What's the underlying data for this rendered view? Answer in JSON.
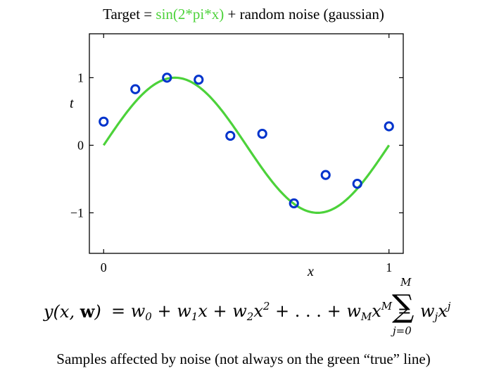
{
  "title": {
    "prefix": "Target = ",
    "highlight": "sin(2*pi*x)",
    "suffix": " + random noise (gaussian)"
  },
  "colors": {
    "curve": "#4cd23a",
    "points": "#0033cc",
    "highlight_text": "#4cd23a"
  },
  "chart_data": {
    "type": "line",
    "title": "Target = sin(2*pi*x) + random noise (gaussian)",
    "xlabel": "x",
    "ylabel": "t",
    "xlim": [
      -0.05,
      1.05
    ],
    "ylim": [
      -1.6,
      1.65
    ],
    "xticks": [
      0,
      1
    ],
    "xtick_labels": [
      "0",
      "1"
    ],
    "yticks": [
      -1,
      0,
      1
    ],
    "ytick_labels": [
      "−1",
      "0",
      "1"
    ],
    "grid": false,
    "series": [
      {
        "kind": "line",
        "function": "sin(2*pi*x)",
        "x_range": [
          0,
          1
        ]
      },
      {
        "kind": "scatter",
        "marker": "open-circle",
        "x": [
          0.0,
          0.111,
          0.222,
          0.333,
          0.444,
          0.556,
          0.667,
          0.778,
          0.889,
          1.0
        ],
        "y": [
          0.35,
          0.83,
          1.0,
          0.97,
          0.14,
          0.17,
          -0.86,
          -0.44,
          -0.57,
          0.28
        ]
      }
    ]
  },
  "formula": {
    "lhs": "y(x, w)",
    "rhs": "= w0 + w1x + w2x^2 + ... + wMx^M = Σ_{j=0}^{M} wj x^j",
    "sum_upper": "M",
    "sum_lower": "j=0"
  },
  "caption": "Samples affected by noise (not always on the green “true” line)"
}
